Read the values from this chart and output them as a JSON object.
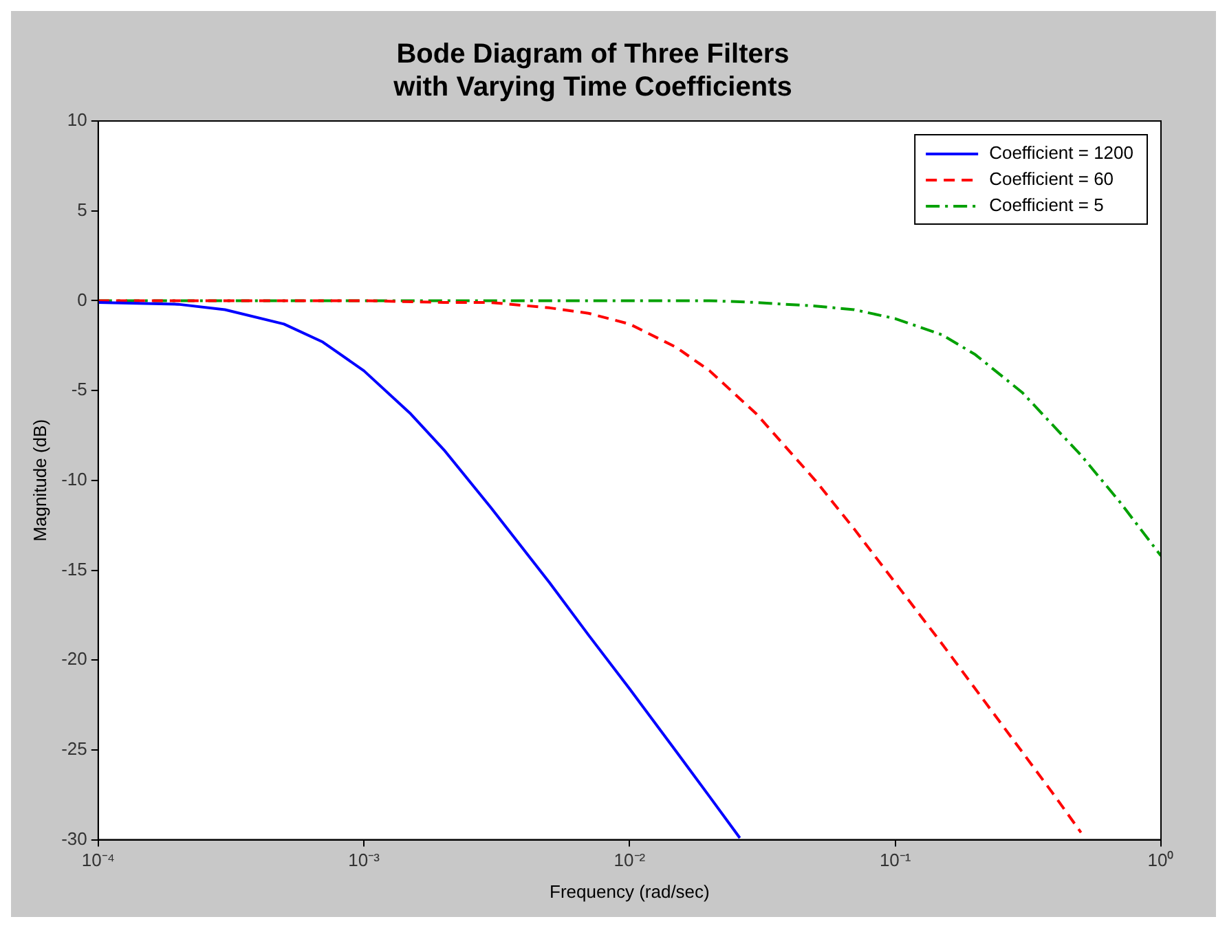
{
  "chart_data": {
    "type": "line",
    "title": "Bode Diagram of Three Filters\nwith Varying Time Coefficients",
    "xlabel": "Frequency (rad/sec)",
    "ylabel": "Magnitude (dB)",
    "log": "x",
    "grid": false,
    "legend": "top right",
    "marker": "none",
    "xlim": [
      0.0001,
      1
    ],
    "xticks": [
      {
        "value": 0.0001,
        "label": "10⁻⁴"
      },
      {
        "value": 0.001,
        "label": "10⁻³"
      },
      {
        "value": 0.01,
        "label": "10⁻²"
      },
      {
        "value": 0.1,
        "label": "10⁻¹"
      },
      {
        "value": 1,
        "label": "10⁰"
      }
    ],
    "ylim": [
      -30,
      10
    ],
    "yticks": [
      -30,
      -25,
      -20,
      -15,
      -10,
      -5,
      0,
      5,
      10
    ],
    "series": [
      {
        "name": "Coefficient = 1200",
        "color": "#0000ff",
        "line_style": "solid",
        "x": [
          0.0001,
          0.0002,
          0.0003,
          0.0005,
          0.0007,
          0.001,
          0.0015,
          0.002,
          0.003,
          0.005,
          0.007,
          0.01,
          0.015,
          0.02,
          0.026
        ],
        "values": [
          -0.1,
          -0.2,
          -0.5,
          -1.3,
          -2.3,
          -3.9,
          -6.3,
          -8.3,
          -11.5,
          -15.7,
          -18.6,
          -21.6,
          -25.1,
          -27.6,
          -29.9
        ]
      },
      {
        "name": "Coefficient = 60",
        "color": "#ff0000",
        "line_style": "dashed",
        "x": [
          0.0001,
          0.001,
          0.002,
          0.003,
          0.005,
          0.007,
          0.01,
          0.015,
          0.02,
          0.03,
          0.05,
          0.07,
          0.1,
          0.15,
          0.2,
          0.3,
          0.4,
          0.5
        ],
        "values": [
          0,
          0,
          -0.1,
          -0.1,
          -0.4,
          -0.7,
          -1.3,
          -2.6,
          -3.9,
          -6.3,
          -10,
          -12.7,
          -15.7,
          -19.1,
          -21.6,
          -25.1,
          -27.6,
          -29.6
        ]
      },
      {
        "name": "Coefficient = 5",
        "color": "#00a000",
        "line_style": "dashdot",
        "x": [
          0.0001,
          0.001,
          0.01,
          0.02,
          0.03,
          0.05,
          0.07,
          0.1,
          0.15,
          0.2,
          0.3,
          0.5,
          0.7,
          1
        ],
        "values": [
          0,
          0,
          0,
          0,
          -0.1,
          -0.3,
          -0.5,
          -1,
          -1.9,
          -3,
          -5.1,
          -8.6,
          -11.2,
          -14.2
        ]
      }
    ]
  }
}
